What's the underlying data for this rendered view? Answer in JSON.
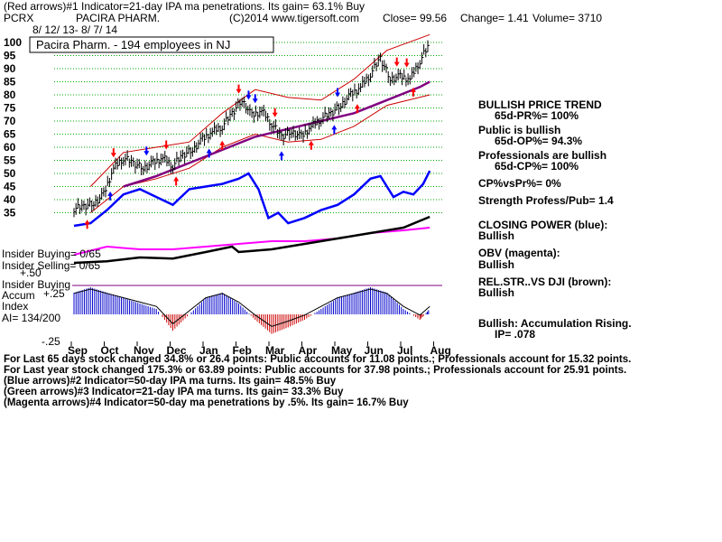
{
  "header": {
    "line1": "(Red arrows)#1 Indicator=21-day IPA ma penetrations. Its gain= 63.1% Buy",
    "symbol": "PCRX",
    "company": "PACIRA PHARM.",
    "copyright": "(C)2014 www.tigersoft.com",
    "close": "Close=  99.56",
    "change": "Change= 1.41",
    "volume": "Volume= 3710",
    "date_range": "8/ 12/ 13-  8/ 7/ 14",
    "title_box": "Pacira Pharm. - 194 employees in NJ"
  },
  "right_panel": [
    {
      "text": "BULLISH PRICE TREND",
      "bold": true
    },
    {
      "text": "65d-PR%= 100%",
      "bold": true
    },
    {
      "text": "Public is bullish",
      "bold": true
    },
    {
      "text": "65d-OP%= 94.3%",
      "bold": true
    },
    {
      "text": "Professionals are bullish",
      "bold": true
    },
    {
      "text": "65d-CP%= 100%",
      "bold": true
    },
    {
      "text": "CP%vsPr%=  0%",
      "bold": true
    },
    {
      "text": "Strength Profess/Pub= 1.4",
      "bold": true
    },
    {
      "text": "CLOSING POWER (blue):",
      "bold": true
    },
    {
      "text": "Bullish",
      "bold": true
    },
    {
      "text": "OBV (magenta):",
      "bold": true
    },
    {
      "text": "Bullish",
      "bold": true
    },
    {
      "text": "REL.STR..VS DJI (brown):",
      "bold": true
    },
    {
      "text": "Bullish",
      "bold": true
    },
    {
      "text": "Bullish: Accumulation Rising.",
      "bold": true
    },
    {
      "text": "IP=  .078",
      "bold": true
    }
  ],
  "left_labels": {
    "insider_buying": "Insider Buying= 0/65",
    "insider_selling": "Insider Selling= 0/65",
    "insider_buying_2": "Insider Buying",
    "accum": "Accum",
    "index": "Index",
    "ai": "AI= 134/200",
    "acc_plus25": "+.25",
    "acc_plus50": "+.50",
    "acc_minus25": "-.25"
  },
  "footer": [
    "For Last 65 days stock changed  34.8% or  26.4 points:  Public accounts for  11.08 points.;  Professionals account for  15.32 points.",
    "For Last year stock changed  175.3% or  63.89 points:  Public accounts for  37.98 points.;  Professionals account for  25.91 points.",
    "(Blue arrows)#2 Indicator=50-day IPA ma turns. Its gain= 48.5% Buy",
    "(Green arrows)#3 Indicator=21-day IPA ma turns. Its gain= 33.3% Buy",
    "(Magenta arrows)#4 Indicator=50-day ma penetrations by .5%. Its gain= 16.7% Buy"
  ],
  "colors": {
    "price": "#000000",
    "band": "#cc0000",
    "ma50": "#800080",
    "closing_power": "#0000ff",
    "obv": "#ff00ff",
    "rel_str": "#8b4513",
    "accum_pos": "#0000cc",
    "accum_neg": "#cc0000",
    "grid": "#00aa00",
    "buy_arrow": "#ff0000",
    "blue_arrow": "#0000ff"
  },
  "chart_data": {
    "type": "line",
    "y_ticks": [
      100,
      95,
      90,
      85,
      80,
      75,
      70,
      65,
      60,
      55,
      50,
      45,
      40,
      35
    ],
    "x_months": [
      "Sep",
      "Oct",
      "Nov",
      "Dec",
      "Jan",
      "Feb",
      "Mar",
      "Apr",
      "May",
      "Jun",
      "Jul",
      "Aug"
    ],
    "ylim": [
      33,
      102
    ],
    "price_series": [
      {
        "m": 0.0,
        "v": 36.5
      },
      {
        "m": 0.3,
        "v": 37.5
      },
      {
        "m": 0.6,
        "v": 38.5
      },
      {
        "m": 0.9,
        "v": 42
      },
      {
        "m": 1.2,
        "v": 52
      },
      {
        "m": 1.5,
        "v": 56
      },
      {
        "m": 1.8,
        "v": 54
      },
      {
        "m": 2.1,
        "v": 52
      },
      {
        "m": 2.4,
        "v": 54
      },
      {
        "m": 2.7,
        "v": 56
      },
      {
        "m": 3.0,
        "v": 53
      },
      {
        "m": 3.3,
        "v": 57
      },
      {
        "m": 3.6,
        "v": 59
      },
      {
        "m": 3.9,
        "v": 63
      },
      {
        "m": 4.2,
        "v": 66
      },
      {
        "m": 4.5,
        "v": 68
      },
      {
        "m": 4.8,
        "v": 73
      },
      {
        "m": 5.1,
        "v": 78
      },
      {
        "m": 5.4,
        "v": 72
      },
      {
        "m": 5.7,
        "v": 74
      },
      {
        "m": 6.0,
        "v": 69
      },
      {
        "m": 6.3,
        "v": 64
      },
      {
        "m": 6.6,
        "v": 66
      },
      {
        "m": 6.9,
        "v": 64
      },
      {
        "m": 7.2,
        "v": 68
      },
      {
        "m": 7.5,
        "v": 71
      },
      {
        "m": 7.8,
        "v": 73
      },
      {
        "m": 8.1,
        "v": 76
      },
      {
        "m": 8.4,
        "v": 80
      },
      {
        "m": 8.7,
        "v": 83
      },
      {
        "m": 9.0,
        "v": 88
      },
      {
        "m": 9.3,
        "v": 94
      },
      {
        "m": 9.6,
        "v": 86
      },
      {
        "m": 9.9,
        "v": 87
      },
      {
        "m": 10.2,
        "v": 86
      },
      {
        "m": 10.5,
        "v": 93
      },
      {
        "m": 10.8,
        "v": 99.56
      }
    ],
    "ma50_series": [
      {
        "m": 1.5,
        "v": 45
      },
      {
        "m": 2.5,
        "v": 49
      },
      {
        "m": 3.5,
        "v": 54
      },
      {
        "m": 4.5,
        "v": 59
      },
      {
        "m": 5.5,
        "v": 64
      },
      {
        "m": 6.5,
        "v": 67
      },
      {
        "m": 7.5,
        "v": 70
      },
      {
        "m": 8.5,
        "v": 73
      },
      {
        "m": 9.5,
        "v": 78
      },
      {
        "m": 10.5,
        "v": 83
      },
      {
        "m": 10.8,
        "v": 85
      }
    ],
    "upper_band": [
      {
        "m": 0.5,
        "v": 45
      },
      {
        "m": 1.5,
        "v": 58
      },
      {
        "m": 2.5,
        "v": 60
      },
      {
        "m": 3.5,
        "v": 62
      },
      {
        "m": 4.5,
        "v": 73
      },
      {
        "m": 5.5,
        "v": 82
      },
      {
        "m": 6.5,
        "v": 79
      },
      {
        "m": 7.5,
        "v": 78
      },
      {
        "m": 8.5,
        "v": 86
      },
      {
        "m": 9.5,
        "v": 97
      },
      {
        "m": 10.8,
        "v": 103
      }
    ],
    "lower_band": [
      {
        "m": 0.5,
        "v": 35
      },
      {
        "m": 1.5,
        "v": 45
      },
      {
        "m": 2.5,
        "v": 48
      },
      {
        "m": 3.5,
        "v": 52
      },
      {
        "m": 4.5,
        "v": 60
      },
      {
        "m": 5.5,
        "v": 65
      },
      {
        "m": 6.5,
        "v": 62
      },
      {
        "m": 7.5,
        "v": 63
      },
      {
        "m": 8.5,
        "v": 68
      },
      {
        "m": 9.5,
        "v": 76
      },
      {
        "m": 10.8,
        "v": 80
      }
    ],
    "closing_power_series": [
      {
        "m": 0.0,
        "v": 30
      },
      {
        "m": 0.5,
        "v": 31
      },
      {
        "m": 1.0,
        "v": 36
      },
      {
        "m": 1.5,
        "v": 42
      },
      {
        "m": 2.0,
        "v": 44
      },
      {
        "m": 2.5,
        "v": 41
      },
      {
        "m": 3.0,
        "v": 38
      },
      {
        "m": 3.5,
        "v": 44
      },
      {
        "m": 4.0,
        "v": 45
      },
      {
        "m": 4.5,
        "v": 46
      },
      {
        "m": 5.0,
        "v": 48
      },
      {
        "m": 5.3,
        "v": 50
      },
      {
        "m": 5.6,
        "v": 44
      },
      {
        "m": 5.9,
        "v": 33
      },
      {
        "m": 6.2,
        "v": 35
      },
      {
        "m": 6.5,
        "v": 31
      },
      {
        "m": 7.0,
        "v": 33
      },
      {
        "m": 7.5,
        "v": 36
      },
      {
        "m": 8.0,
        "v": 38
      },
      {
        "m": 8.5,
        "v": 42
      },
      {
        "m": 9.0,
        "v": 48
      },
      {
        "m": 9.3,
        "v": 49
      },
      {
        "m": 9.7,
        "v": 41
      },
      {
        "m": 10.0,
        "v": 43
      },
      {
        "m": 10.3,
        "v": 42
      },
      {
        "m": 10.6,
        "v": 46
      },
      {
        "m": 10.8,
        "v": 51
      }
    ],
    "obv_series": [
      {
        "m": 0.0,
        "v": 31
      },
      {
        "m": 1.0,
        "v": 32.5
      },
      {
        "m": 2.0,
        "v": 32
      },
      {
        "m": 3.0,
        "v": 32
      },
      {
        "m": 4.0,
        "v": 32.5
      },
      {
        "m": 5.0,
        "v": 33
      },
      {
        "m": 6.0,
        "v": 33.5
      },
      {
        "m": 7.0,
        "v": 33.5
      },
      {
        "m": 8.0,
        "v": 34
      },
      {
        "m": 9.0,
        "v": 35
      },
      {
        "m": 10.0,
        "v": 35.5
      },
      {
        "m": 10.8,
        "v": 36
      }
    ],
    "rel_str_series": [
      {
        "m": 0.0,
        "v": 29.5
      },
      {
        "m": 1.0,
        "v": 29.8
      },
      {
        "m": 2.0,
        "v": 30.5
      },
      {
        "m": 3.0,
        "v": 30.3
      },
      {
        "m": 4.0,
        "v": 31.5
      },
      {
        "m": 4.8,
        "v": 32.5
      },
      {
        "m": 5.0,
        "v": 31.5
      },
      {
        "m": 6.0,
        "v": 32
      },
      {
        "m": 7.0,
        "v": 33
      },
      {
        "m": 8.0,
        "v": 34
      },
      {
        "m": 9.0,
        "v": 35
      },
      {
        "m": 10.0,
        "v": 36
      },
      {
        "m": 10.8,
        "v": 38
      }
    ],
    "accum_series": [
      {
        "m": 0.0,
        "v": 0.2
      },
      {
        "m": 0.5,
        "v": 0.25
      },
      {
        "m": 1.0,
        "v": 0.2
      },
      {
        "m": 1.5,
        "v": 0.15
      },
      {
        "m": 2.0,
        "v": 0.1
      },
      {
        "m": 2.5,
        "v": 0.05
      },
      {
        "m": 3.0,
        "v": -0.15
      },
      {
        "m": 3.5,
        "v": 0.0
      },
      {
        "m": 4.0,
        "v": 0.15
      },
      {
        "m": 4.5,
        "v": 0.2
      },
      {
        "m": 5.0,
        "v": 0.1
      },
      {
        "m": 5.5,
        "v": -0.05
      },
      {
        "m": 6.0,
        "v": -0.18
      },
      {
        "m": 6.5,
        "v": -0.12
      },
      {
        "m": 7.0,
        "v": -0.05
      },
      {
        "m": 7.5,
        "v": 0.05
      },
      {
        "m": 8.0,
        "v": 0.15
      },
      {
        "m": 8.5,
        "v": 0.2
      },
      {
        "m": 9.0,
        "v": 0.25
      },
      {
        "m": 9.5,
        "v": 0.2
      },
      {
        "m": 10.0,
        "v": 0.05
      },
      {
        "m": 10.5,
        "v": -0.05
      },
      {
        "m": 10.8,
        "v": 0.05
      }
    ],
    "red_arrows_down": [
      1.2,
      2.8,
      5.0,
      6.1,
      9.8,
      10.1
    ],
    "red_arrows_up": [
      0.4,
      3.1,
      4.5,
      7.2,
      8.6,
      10.3
    ],
    "blue_arrows_down": [
      2.2,
      5.3,
      5.5,
      8.0
    ],
    "blue_arrows_up": [
      1.1,
      4.1,
      6.3,
      7.9
    ]
  }
}
